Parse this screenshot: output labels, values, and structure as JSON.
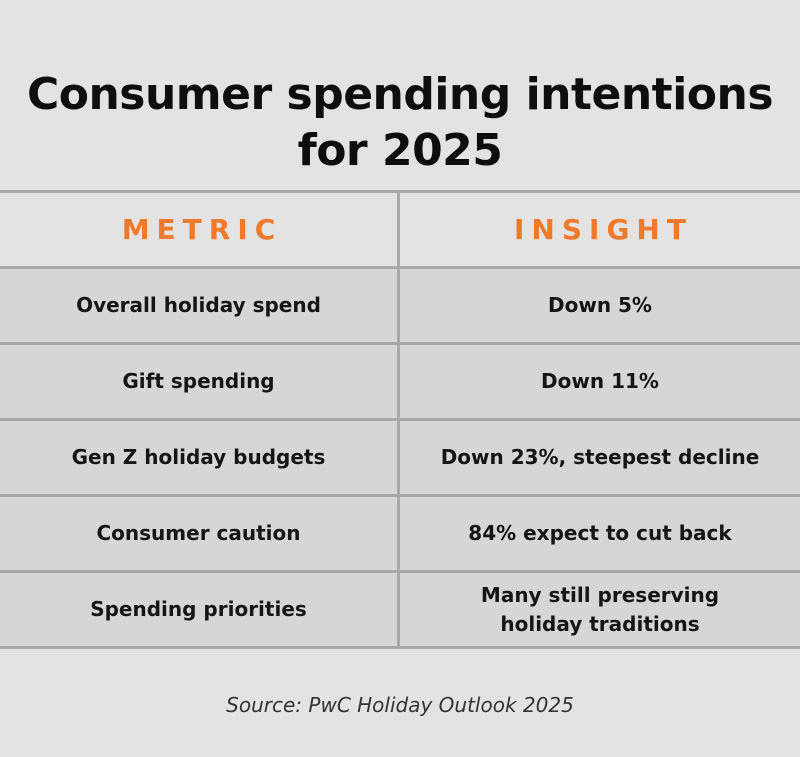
{
  "title": {
    "line1": "Consumer spending intentions",
    "line2": "for 2025"
  },
  "table": {
    "headers": {
      "metric": "METRIC",
      "insight": "INSIGHT"
    },
    "rows": [
      {
        "metric": "Overall holiday spend",
        "insight": "Down 5%"
      },
      {
        "metric": "Gift spending",
        "insight": "Down 11%"
      },
      {
        "metric": "Gen Z holiday budgets",
        "insight": "Down 23%, steepest decline"
      },
      {
        "metric": "Consumer caution",
        "insight": "84% expect to cut back"
      },
      {
        "metric": "Spending priorities",
        "insight_line1": "Many still preserving",
        "insight_line2": "holiday traditions"
      }
    ]
  },
  "source": "Source: PwC Holiday Outlook 2025",
  "colors": {
    "background": "#e3e3e3",
    "row_fill": "#d6d6d6",
    "accent": "#f07a2b",
    "rule": "#a9a9a9"
  }
}
